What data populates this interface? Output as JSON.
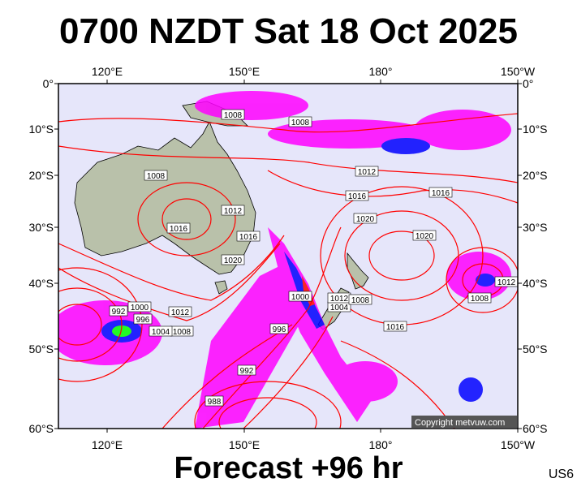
{
  "title": "0700 NZDT Sat 18 Oct 2025",
  "subtitle": "Forecast +96 hr",
  "model_code": "US6",
  "copyright": "Copyright metvuw.com",
  "map": {
    "region": "Australia, New Zealand and southwest Pacific",
    "longitude_labels": [
      "120°E",
      "150°E",
      "180°",
      "150°W"
    ],
    "latitude_labels": [
      "0°",
      "10°S",
      "20°S",
      "30°S",
      "40°S",
      "50°S",
      "60°S"
    ],
    "colors": {
      "ocean": "#e6e6fa",
      "isobar": "#ff0000",
      "precip_light": "#ff00ff",
      "precip_mid": "#8a2be2",
      "precip_heavy": "#0000ff",
      "land": "#b8c0a8"
    },
    "isobar_labels": [
      "1008",
      "1008",
      "1008",
      "1012",
      "1016",
      "1016",
      "1020",
      "1020",
      "1012",
      "1016",
      "1016",
      "1020",
      "1000",
      "1004",
      "1012",
      "1008",
      "1016",
      "1012",
      "1008",
      "992",
      "1000",
      "996",
      "1012",
      "1008",
      "1004",
      "996",
      "992",
      "988"
    ]
  }
}
